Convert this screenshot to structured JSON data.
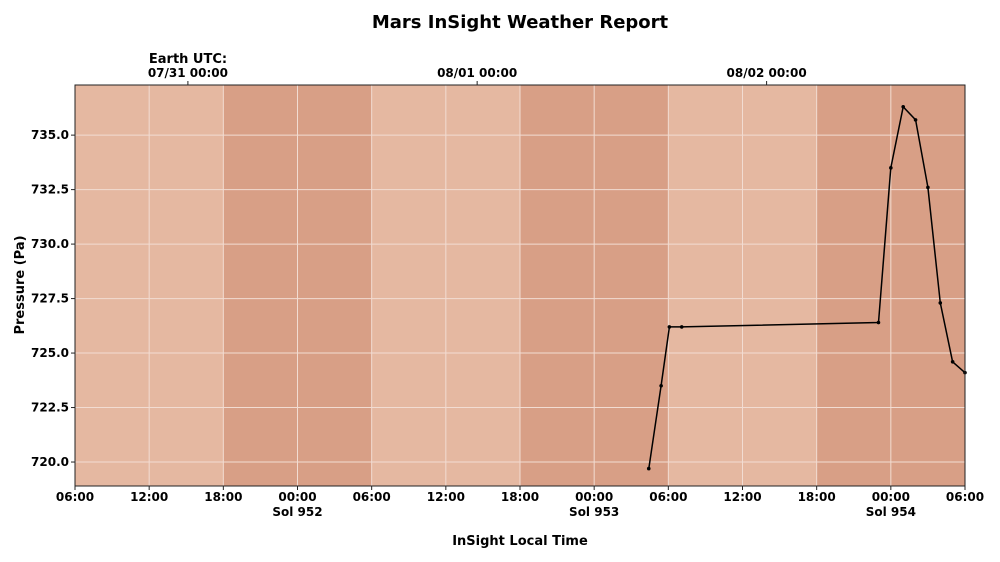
{
  "chart_data": {
    "type": "line",
    "title": "Mars InSight Weather Report",
    "xlabel": "InSight Local Time",
    "ylabel": "Pressure (Pa)",
    "top_axis_label": "Earth UTC:",
    "xlim": [
      "Sol 951 06:00",
      "Sol 954 06:00"
    ],
    "ylim": [
      718.9,
      737.3
    ],
    "grid": true,
    "x_ticks": [
      {
        "at": "Sol 951 06:00",
        "time": "06:00",
        "sol": ""
      },
      {
        "at": "Sol 951 12:00",
        "time": "12:00",
        "sol": ""
      },
      {
        "at": "Sol 951 18:00",
        "time": "18:00",
        "sol": ""
      },
      {
        "at": "Sol 952 00:00",
        "time": "00:00",
        "sol": "Sol 952"
      },
      {
        "at": "Sol 952 06:00",
        "time": "06:00",
        "sol": ""
      },
      {
        "at": "Sol 952 12:00",
        "time": "12:00",
        "sol": ""
      },
      {
        "at": "Sol 952 18:00",
        "time": "18:00",
        "sol": ""
      },
      {
        "at": "Sol 953 00:00",
        "time": "00:00",
        "sol": "Sol 953"
      },
      {
        "at": "Sol 953 06:00",
        "time": "06:00",
        "sol": ""
      },
      {
        "at": "Sol 953 12:00",
        "time": "12:00",
        "sol": ""
      },
      {
        "at": "Sol 953 18:00",
        "time": "18:00",
        "sol": ""
      },
      {
        "at": "Sol 954 00:00",
        "time": "00:00",
        "sol": "Sol 954"
      },
      {
        "at": "Sol 954 06:00",
        "time": "06:00",
        "sol": ""
      }
    ],
    "y_ticks": [
      720.0,
      722.5,
      725.0,
      727.5,
      730.0,
      732.5,
      735.0
    ],
    "top_ticks": [
      {
        "at": "Sol 951 15:08",
        "label": "07/31 00:00"
      },
      {
        "at": "Sol 952 14:32",
        "label": "08/01 00:00"
      },
      {
        "at": "Sol 953 13:57",
        "label": "08/02 00:00"
      }
    ],
    "bands": [
      {
        "start": "Sol 951 06:00",
        "end": "Sol 951 18:00",
        "kind": "day"
      },
      {
        "start": "Sol 951 18:00",
        "end": "Sol 952 06:00",
        "kind": "night"
      },
      {
        "start": "Sol 952 06:00",
        "end": "Sol 952 18:00",
        "kind": "day"
      },
      {
        "start": "Sol 952 18:00",
        "end": "Sol 953 06:00",
        "kind": "night"
      },
      {
        "start": "Sol 953 06:00",
        "end": "Sol 953 18:00",
        "kind": "day"
      },
      {
        "start": "Sol 953 18:00",
        "end": "Sol 954 06:00",
        "kind": "night"
      }
    ],
    "series": [
      {
        "x": [
          "Sol 953 04:25",
          "Sol 953 05:25",
          "Sol 953 06:05",
          "Sol 953 07:05",
          "Sol 953 23:00",
          "Sol 954 00:00",
          "Sol 954 01:00",
          "Sol 954 02:00",
          "Sol 954 03:00",
          "Sol 954 04:00",
          "Sol 954 05:00",
          "Sol 954 06:00"
        ],
        "y": [
          719.7,
          723.5,
          726.2,
          726.2,
          726.4,
          733.5,
          736.3,
          735.7,
          732.6,
          727.3,
          724.6,
          724.1
        ]
      }
    ],
    "colors": {
      "day_band": "#e5b8a1",
      "night_band": "#d89f86",
      "line": "#000000",
      "grid": "#f2dcd2"
    }
  }
}
